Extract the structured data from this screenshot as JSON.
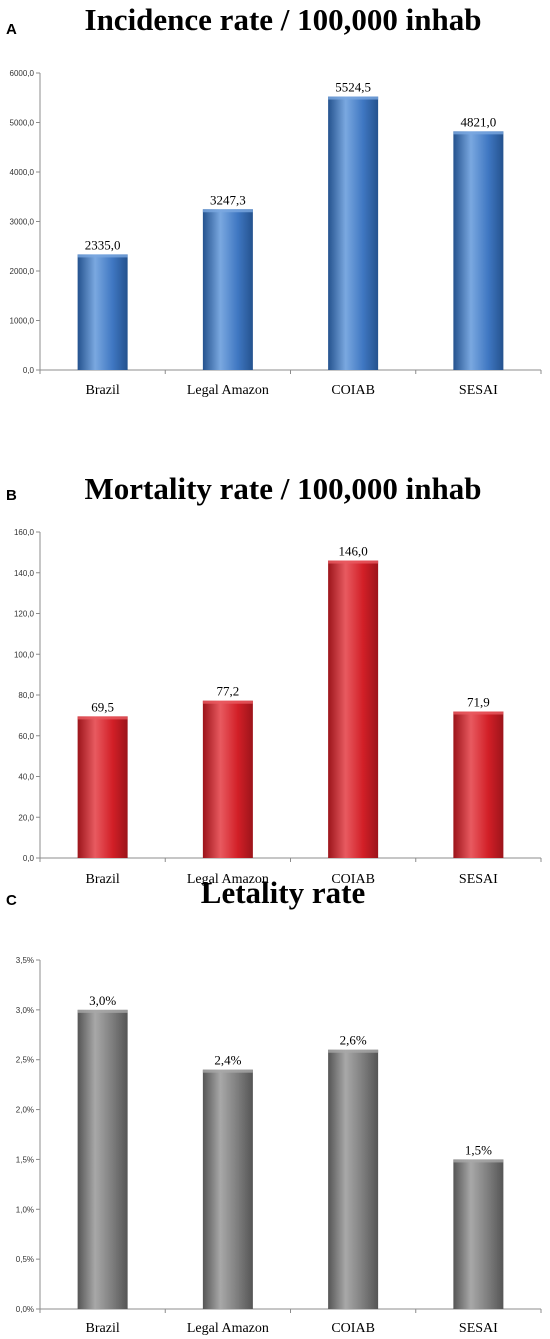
{
  "chart_data": [
    {
      "panel": "A",
      "type": "bar",
      "title": "Incidence rate / 100,000 inhab",
      "categories": [
        "Brazil",
        "Legal Amazon",
        "COIAB",
        "SESAI"
      ],
      "values": [
        2335.0,
        3247.3,
        5524.5,
        4821.0
      ],
      "value_labels": [
        "2335,0",
        "3247,3",
        "5524,5",
        "4821,0"
      ],
      "yticks": [
        "0,0",
        "1000,0",
        "2000,0",
        "3000,0",
        "4000,0",
        "5000,0",
        "6000,0"
      ],
      "ylim": [
        0,
        6000
      ],
      "grid": false,
      "colors": {
        "light": "#7aa8e0",
        "main": "#3f77c2",
        "dark": "#24528e"
      }
    },
    {
      "panel": "B",
      "type": "bar",
      "title": "Mortality rate / 100,000 inhab",
      "categories": [
        "Brazil",
        "Legal Amazon",
        "COIAB",
        "SESAI"
      ],
      "values": [
        69.5,
        77.2,
        146.0,
        71.9
      ],
      "value_labels": [
        "69,5",
        "77,2",
        "146,0",
        "71,9"
      ],
      "yticks": [
        "0,0",
        "20,0",
        "40,0",
        "60,0",
        "80,0",
        "100,0",
        "120,0",
        "140,0",
        "160,0"
      ],
      "ylim": [
        0,
        160
      ],
      "grid": false,
      "colors": {
        "light": "#e85a60",
        "main": "#d21f27",
        "dark": "#9c141a"
      }
    },
    {
      "panel": "C",
      "type": "bar",
      "title": "Letality rate",
      "categories": [
        "Brazil",
        "Legal Amazon",
        "COIAB",
        "SESAI"
      ],
      "values": [
        3.0,
        2.4,
        2.6,
        1.5
      ],
      "value_labels": [
        "3,0%",
        "2,4%",
        "2,6%",
        "1,5%"
      ],
      "yticks": [
        "0,0%",
        "0,5%",
        "1,0%",
        "1,5%",
        "2,0%",
        "2,5%",
        "3,0%",
        "3,5%"
      ],
      "ylim": [
        0,
        3.5
      ],
      "grid": false,
      "colors": {
        "light": "#a8a8a8",
        "main": "#7d7d7d",
        "dark": "#555555"
      }
    }
  ]
}
